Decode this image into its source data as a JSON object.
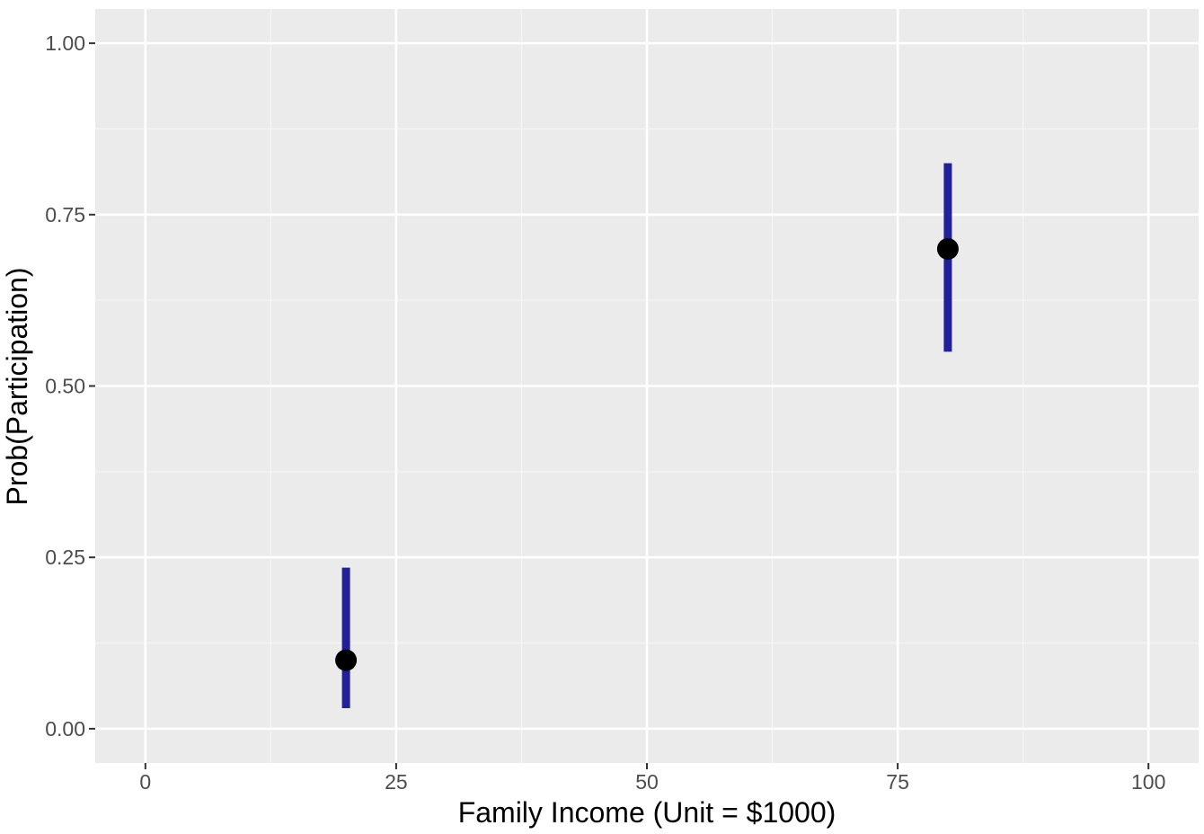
{
  "colors": {
    "panel_background": "#ebebeb",
    "grid_major": "#ffffff",
    "grid_minor": "#f5f5f5",
    "tick_mark": "#333333",
    "tick_text": "#4d4d4d",
    "errorbar": "#20209a",
    "point": "#000000"
  },
  "chart_data": {
    "type": "scatter",
    "title": "",
    "xlabel": "Family Income (Unit = $1000)",
    "ylabel": "Prob(Participation)",
    "xlim": [
      -5,
      105
    ],
    "ylim": [
      -0.05,
      1.05
    ],
    "x_ticks": [
      0,
      25,
      50,
      75,
      100
    ],
    "x_tick_labels": [
      "0",
      "25",
      "50",
      "75",
      "100"
    ],
    "y_ticks": [
      0,
      0.25,
      0.5,
      0.75,
      1
    ],
    "y_tick_labels": [
      "0.00",
      "0.25",
      "0.50",
      "0.75",
      "1.00"
    ],
    "grid": true,
    "points": [
      {
        "x": 20,
        "y": 0.1,
        "lower": 0.03,
        "upper": 0.235
      },
      {
        "x": 80,
        "y": 0.7,
        "lower": 0.55,
        "upper": 0.825
      }
    ]
  }
}
